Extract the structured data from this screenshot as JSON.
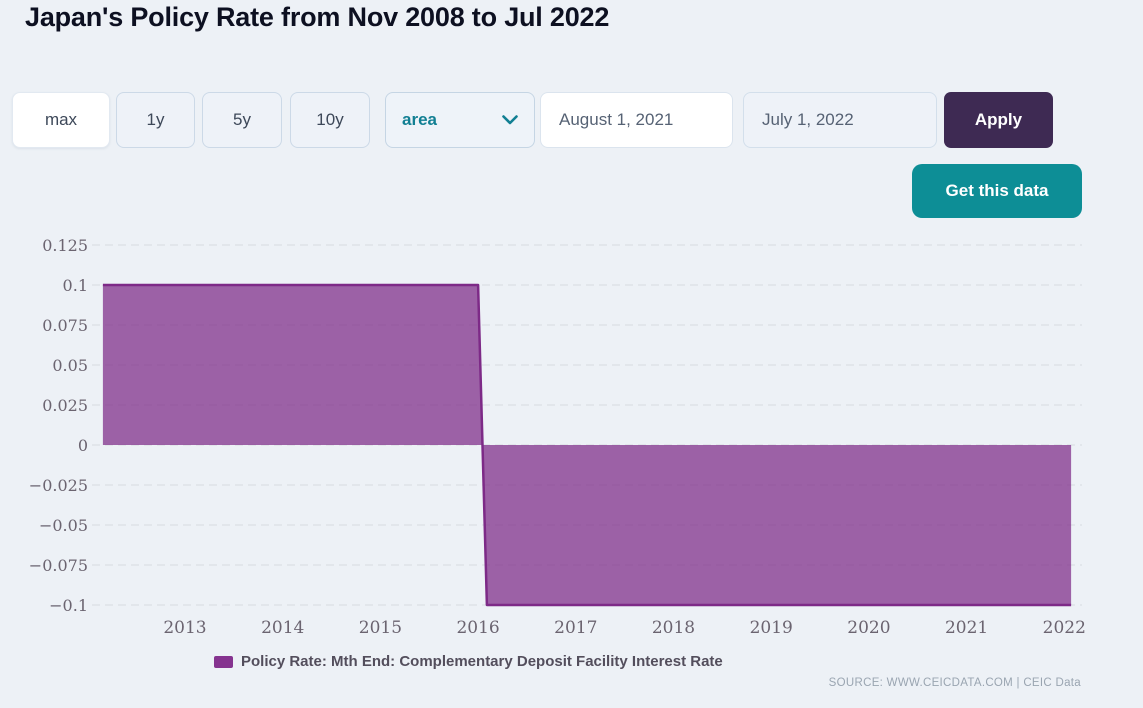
{
  "page": {
    "title": "Japan's Policy Rate from Nov 2008 to Jul 2022",
    "background_color": "#edf1f6"
  },
  "toolbar": {
    "range_buttons": [
      {
        "label": "max",
        "active": true
      },
      {
        "label": "1y",
        "active": false
      },
      {
        "label": "5y",
        "active": false
      },
      {
        "label": "10y",
        "active": false
      }
    ],
    "chart_type_select": {
      "value": "area",
      "accent_color": "#117f93"
    },
    "date_from_value": "August 1, 2021",
    "date_to_value": "July 1, 2022",
    "apply_label": "Apply",
    "apply_color": "#3e2a53",
    "get_data_label": "Get this data",
    "get_data_color": "#0d8e96"
  },
  "legend": {
    "label": "Policy Rate: Mth End: Complementary Deposit Facility Interest Rate",
    "swatch_color": "#85338f"
  },
  "source_text": "SOURCE: WWW.CEICDATA.COM | CEIC Data",
  "chart_data": {
    "type": "area",
    "title": "Japan's Policy Rate from Nov 2008 to Jul 2022",
    "xlabel": "",
    "ylabel": "",
    "x_ticks": [
      2013,
      2014,
      2015,
      2016,
      2017,
      2018,
      2019,
      2020,
      2021,
      2022
    ],
    "y_ticks": [
      0.125,
      0.1,
      0.075,
      0.05,
      0.025,
      0,
      -0.025,
      -0.05,
      -0.075,
      -0.1
    ],
    "ylim": [
      -0.1,
      0.125
    ],
    "xlim_decimal_years": [
      2012.16,
      2022.07
    ],
    "grid": "horizontal-dashed",
    "legend_position": "bottom",
    "series": [
      {
        "name": "Policy Rate: Mth End: Complementary Deposit Facility Interest Rate",
        "line_color": "#7d2a87",
        "fill_color": "rgba(125,42,135,0.72)",
        "points": [
          [
            2012.16,
            0.1
          ],
          [
            2016.0,
            0.1
          ],
          [
            2016.09,
            -0.1
          ],
          [
            2022.07,
            -0.1
          ]
        ],
        "description": "Rate steady at 0.1 until Jan 2016, then -0.1 from Feb 2016 through Jul 2022; area filled to zero baseline"
      }
    ]
  }
}
